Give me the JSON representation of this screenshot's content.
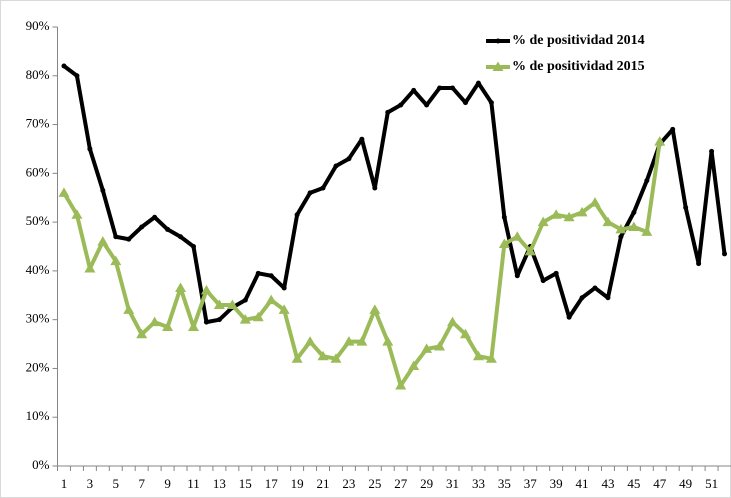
{
  "chart_data": {
    "type": "line",
    "categories": [
      "1",
      null,
      "3",
      null,
      "5",
      null,
      "7",
      null,
      "9",
      null,
      "11",
      null,
      "13",
      null,
      "15",
      null,
      "17",
      null,
      "19",
      null,
      "21",
      null,
      "23",
      null,
      "25",
      null,
      "27",
      null,
      "29",
      null,
      "31",
      null,
      "33",
      null,
      "35",
      null,
      "37",
      null,
      "39",
      null,
      "41",
      null,
      "43",
      null,
      "45",
      null,
      "47",
      null,
      "49",
      null,
      "51",
      null
    ],
    "series": [
      {
        "name": "% de positividad 2014",
        "color": "#000000",
        "marker": "circle",
        "values": [
          82,
          80,
          65,
          56.5,
          47,
          46.5,
          49,
          51,
          48.5,
          47,
          45,
          29.5,
          30,
          32.5,
          34,
          39.5,
          39,
          36.5,
          51.5,
          56,
          57,
          61.5,
          63,
          67,
          57,
          72.5,
          74,
          77,
          74,
          77.5,
          77.5,
          74.5,
          78.5,
          74.5,
          51,
          39,
          45,
          38,
          39.5,
          30.5,
          34.5,
          36.5,
          34.5,
          47,
          52,
          58.5,
          66,
          69,
          53,
          41.5,
          64.5,
          43.5
        ]
      },
      {
        "name": "% de positividad 2015",
        "color": "#9bbb59",
        "marker": "triangle",
        "values": [
          56,
          51.5,
          40.5,
          46,
          42,
          32,
          27,
          29.5,
          28.5,
          36.5,
          28.5,
          36,
          33,
          33,
          30,
          30.5,
          34,
          32,
          22,
          25.5,
          22.5,
          22,
          25.5,
          25.5,
          32,
          25.5,
          16.5,
          20.5,
          24,
          24.5,
          29.5,
          27,
          22.5,
          22,
          45.5,
          47,
          44,
          50,
          51.5,
          51,
          52,
          54,
          50,
          48.5,
          49,
          48,
          66.5,
          null,
          null,
          null,
          null,
          null
        ]
      }
    ],
    "ylim": [
      0,
      90
    ],
    "yticks": [
      {
        "value": 0,
        "label": "0%"
      },
      {
        "value": 10,
        "label": "10%"
      },
      {
        "value": 20,
        "label": "20%"
      },
      {
        "value": 30,
        "label": "30%"
      },
      {
        "value": 40,
        "label": "40%"
      },
      {
        "value": 50,
        "label": "50%"
      },
      {
        "value": 60,
        "label": "60%"
      },
      {
        "value": 70,
        "label": "70%"
      },
      {
        "value": 80,
        "label": "80%"
      },
      {
        "value": 90,
        "label": "90%"
      }
    ],
    "grid": false,
    "legend": "top-right"
  }
}
